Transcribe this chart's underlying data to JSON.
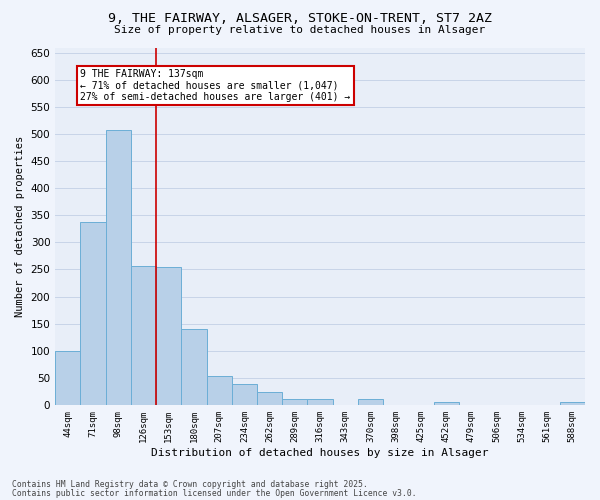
{
  "title_line1": "9, THE FAIRWAY, ALSAGER, STOKE-ON-TRENT, ST7 2AZ",
  "title_line2": "Size of property relative to detached houses in Alsager",
  "xlabel": "Distribution of detached houses by size in Alsager",
  "ylabel": "Number of detached properties",
  "categories": [
    "44sqm",
    "71sqm",
    "98sqm",
    "126sqm",
    "153sqm",
    "180sqm",
    "207sqm",
    "234sqm",
    "262sqm",
    "289sqm",
    "316sqm",
    "343sqm",
    "370sqm",
    "398sqm",
    "425sqm",
    "452sqm",
    "479sqm",
    "506sqm",
    "534sqm",
    "561sqm",
    "588sqm"
  ],
  "values": [
    100,
    338,
    507,
    256,
    255,
    140,
    54,
    38,
    24,
    10,
    10,
    0,
    10,
    0,
    0,
    5,
    0,
    0,
    0,
    0,
    5
  ],
  "bar_color": "#b8d0e8",
  "bar_edge_color": "#6baed6",
  "vline_color": "#cc0000",
  "vline_x": 3.5,
  "ylim": [
    0,
    660
  ],
  "yticks": [
    0,
    50,
    100,
    150,
    200,
    250,
    300,
    350,
    400,
    450,
    500,
    550,
    600,
    650
  ],
  "grid_color": "#c8d4e8",
  "background_color": "#e8eef8",
  "fig_background": "#f0f4fc",
  "annotation_text_title": "9 THE FAIRWAY: 137sqm",
  "annotation_text_line1": "← 71% of detached houses are smaller (1,047)",
  "annotation_text_line2": "27% of semi-detached houses are larger (401) →",
  "annotation_box_color": "#ffffff",
  "annotation_box_edge_color": "#cc0000",
  "footnote_line1": "Contains HM Land Registry data © Crown copyright and database right 2025.",
  "footnote_line2": "Contains public sector information licensed under the Open Government Licence v3.0."
}
